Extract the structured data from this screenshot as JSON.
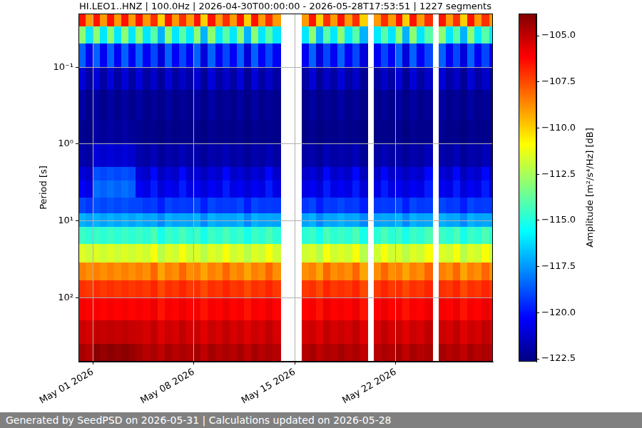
{
  "chart_data": {
    "type": "heatmap",
    "title": "HI.LEO1..HNZ | 100.0Hz | 2026-04-30T00:00:00 - 2026-05-28T17:53:51 | 1227 segments",
    "ylabel": "Period [s]",
    "footer": "Generated by SeedPSD on 2026-05-31 | Calculations updated on 2026-05-28",
    "log": "y",
    "grid": true,
    "xlim": [
      "2026-04-30T00:00:00",
      "2026-05-28T17:53:51"
    ],
    "xticks": [
      {
        "value": "2026-05-01T00:00",
        "label": "May 01 2026"
      },
      {
        "value": "2026-05-08T00:00",
        "label": "May 08 2026"
      },
      {
        "value": "2026-05-15T00:00",
        "label": "May 15 2026"
      },
      {
        "value": "2026-05-22T00:00",
        "label": "May 22 2026"
      }
    ],
    "ylim": [
      0.02,
      680
    ],
    "yticks": [
      {
        "value": 0.1,
        "label": "10⁻¹"
      },
      {
        "value": 1,
        "label": "10⁰"
      },
      {
        "value": 10,
        "label": "10¹"
      },
      {
        "value": 100,
        "label": "10²"
      }
    ],
    "x_bins": [
      "2026-04-30T00:00",
      "2026-04-30T12:00",
      "2026-05-01T00:00",
      "2026-05-01T12:00",
      "2026-05-02T00:00",
      "2026-05-02T12:00",
      "2026-05-03T00:00",
      "2026-05-03T12:00",
      "2026-05-04T00:00",
      "2026-05-04T12:00",
      "2026-05-05T00:00",
      "2026-05-05T12:00",
      "2026-05-06T00:00",
      "2026-05-06T12:00",
      "2026-05-07T00:00",
      "2026-05-07T12:00",
      "2026-05-08T00:00",
      "2026-05-08T12:00",
      "2026-05-09T00:00",
      "2026-05-09T12:00",
      "2026-05-10T00:00",
      "2026-05-10T12:00",
      "2026-05-11T00:00",
      "2026-05-11T12:00",
      "2026-05-12T00:00",
      "2026-05-12T12:00",
      "2026-05-13T00:00",
      "2026-05-13T12:00",
      "2026-05-14T00:00",
      "2026-05-14T12:00",
      "2026-05-15T00:00",
      "2026-05-15T12:00",
      "2026-05-16T00:00",
      "2026-05-16T12:00",
      "2026-05-17T00:00",
      "2026-05-17T12:00",
      "2026-05-18T00:00",
      "2026-05-18T12:00",
      "2026-05-19T00:00",
      "2026-05-19T12:00",
      "2026-05-20T00:00",
      "2026-05-20T12:00",
      "2026-05-21T00:00",
      "2026-05-21T12:00",
      "2026-05-22T00:00",
      "2026-05-22T12:00",
      "2026-05-23T00:00",
      "2026-05-23T12:00",
      "2026-05-24T00:00",
      "2026-05-24T12:00",
      "2026-05-25T00:00",
      "2026-05-25T12:00",
      "2026-05-26T00:00",
      "2026-05-26T12:00",
      "2026-05-27T00:00",
      "2026-05-27T12:00",
      "2026-05-28T00:00",
      "2026-05-28T12:00",
      "2026-05-28T17:53:51"
    ],
    "y_bins": [
      0.02,
      0.03,
      0.05,
      0.1,
      0.2,
      0.5,
      1,
      2,
      3,
      5,
      8,
      12,
      20,
      35,
      60,
      100,
      200,
      400,
      680
    ],
    "cells": [
      [
        -106.5,
        -113.0,
        -118.5,
        -121.0,
        -122.0,
        -122.3,
        -121.8,
        -121.0,
        -120.5,
        -119.0,
        -117.0,
        -114.5,
        -111.5,
        -108.5,
        -107.0,
        -106.0,
        -105.2,
        -104.5
      ],
      [
        -109.0,
        -116.0,
        -120.5,
        -122.0,
        -122.4,
        -122.5,
        -122.0,
        -121.3,
        -120.8,
        -119.3,
        -117.3,
        -114.8,
        -111.8,
        -108.8,
        -107.2,
        -106.2,
        -105.4,
        -104.8
      ],
      [
        -106.5,
        -113.0,
        -118.5,
        -121.0,
        -122.0,
        -122.0,
        -121.0,
        -118.8,
        -118.2,
        -118.8,
        -117.0,
        -114.5,
        -111.5,
        -108.5,
        -107.0,
        -106.0,
        -105.0,
        -104.0
      ],
      [
        -109.0,
        -116.0,
        -120.5,
        -122.0,
        -122.4,
        -122.2,
        -121.2,
        -119.0,
        -118.5,
        -119.0,
        -117.3,
        -114.8,
        -111.8,
        -108.8,
        -107.2,
        -106.2,
        -105.1,
        -104.2
      ],
      [
        -106.5,
        -113.0,
        -118.5,
        -121.0,
        -122.0,
        -122.0,
        -121.0,
        -118.8,
        -118.2,
        -118.8,
        -117.0,
        -114.5,
        -111.5,
        -108.5,
        -107.0,
        -106.0,
        -105.0,
        -104.0
      ],
      [
        -109.0,
        -116.0,
        -120.5,
        -122.0,
        -122.4,
        -122.2,
        -121.2,
        -119.0,
        -118.5,
        -119.0,
        -117.3,
        -114.8,
        -111.8,
        -108.8,
        -107.2,
        -106.2,
        -105.1,
        -104.2
      ],
      [
        -106.5,
        -113.0,
        -118.5,
        -121.0,
        -122.0,
        -122.0,
        -121.0,
        -118.8,
        -118.2,
        -118.8,
        -117.0,
        -114.5,
        -111.5,
        -108.5,
        -107.0,
        -106.0,
        -105.0,
        -104.0
      ],
      [
        -109.0,
        -116.0,
        -120.5,
        -122.0,
        -122.4,
        -122.2,
        -121.2,
        -119.0,
        -118.5,
        -119.0,
        -117.3,
        -114.8,
        -111.8,
        -108.8,
        -107.2,
        -106.2,
        -105.1,
        -104.2
      ],
      [
        -106.5,
        -113.0,
        -118.5,
        -121.0,
        -122.0,
        -122.3,
        -121.8,
        -121.0,
        -120.5,
        -119.0,
        -117.0,
        -114.5,
        -111.5,
        -108.5,
        -107.0,
        -106.0,
        -105.2,
        -104.5
      ],
      [
        -109.0,
        -116.0,
        -120.5,
        -122.0,
        -122.4,
        -122.5,
        -122.0,
        -121.3,
        -120.8,
        -119.3,
        -117.3,
        -114.8,
        -111.8,
        -108.8,
        -107.2,
        -106.2,
        -105.4,
        -104.8
      ],
      [
        -107.0,
        -114.0,
        -119.0,
        -121.3,
        -122.2,
        -122.4,
        -121.6,
        -120.2,
        -119.8,
        -119.2,
        -117.2,
        -114.2,
        -111.0,
        -108.0,
        -106.8,
        -105.8,
        -105.0,
        -104.6
      ],
      [
        -110.0,
        -117.0,
        -121.0,
        -122.2,
        -122.5,
        -122.6,
        -122.2,
        -121.5,
        -121.0,
        -119.8,
        -117.8,
        -115.2,
        -112.2,
        -109.2,
        -107.5,
        -106.5,
        -105.6,
        -105.0
      ],
      [
        -106.5,
        -113.0,
        -118.5,
        -121.0,
        -122.0,
        -122.3,
        -121.8,
        -121.0,
        -120.5,
        -119.0,
        -117.0,
        -114.5,
        -111.5,
        -108.5,
        -107.0,
        -106.0,
        -105.2,
        -104.5
      ],
      [
        -109.0,
        -116.0,
        -120.5,
        -122.0,
        -122.4,
        -122.5,
        -122.0,
        -121.3,
        -120.8,
        -119.3,
        -117.3,
        -114.8,
        -111.8,
        -108.8,
        -107.2,
        -106.2,
        -105.4,
        -104.8
      ],
      [
        -107.0,
        -114.0,
        -119.0,
        -121.3,
        -122.2,
        -122.4,
        -121.6,
        -120.2,
        -119.8,
        -119.2,
        -117.2,
        -114.2,
        -111.0,
        -108.0,
        -106.8,
        -105.8,
        -105.0,
        -104.6
      ],
      [
        -109.0,
        -116.0,
        -120.5,
        -122.0,
        -122.4,
        -122.5,
        -122.0,
        -121.3,
        -120.8,
        -119.3,
        -117.3,
        -114.8,
        -111.8,
        -108.8,
        -107.2,
        -106.2,
        -105.4,
        -104.8
      ],
      [
        -106.5,
        -113.0,
        -118.5,
        -121.0,
        -122.0,
        -122.3,
        -121.8,
        -121.0,
        -120.5,
        -119.0,
        -117.0,
        -114.5,
        -111.5,
        -108.5,
        -107.0,
        -106.0,
        -105.2,
        -104.5
      ],
      [
        -110.0,
        -117.0,
        -121.0,
        -122.2,
        -122.5,
        -122.6,
        -122.2,
        -121.5,
        -121.0,
        -119.8,
        -117.8,
        -115.2,
        -112.2,
        -109.2,
        -107.5,
        -106.5,
        -105.6,
        -105.0
      ],
      [
        -106.5,
        -113.0,
        -118.5,
        -121.0,
        -122.0,
        -122.3,
        -121.8,
        -121.0,
        -120.5,
        -119.0,
        -117.0,
        -114.5,
        -111.5,
        -108.5,
        -107.0,
        -106.0,
        -105.2,
        -104.5
      ],
      [
        -109.0,
        -116.0,
        -120.5,
        -122.0,
        -122.4,
        -122.5,
        -122.0,
        -121.3,
        -120.8,
        -119.3,
        -117.3,
        -114.8,
        -111.8,
        -108.8,
        -107.2,
        -106.2,
        -105.4,
        -104.8
      ],
      [
        -107.0,
        -114.0,
        -119.0,
        -121.3,
        -122.2,
        -122.4,
        -121.6,
        -120.2,
        -119.8,
        -119.2,
        -117.2,
        -114.2,
        -111.0,
        -108.0,
        -106.8,
        -105.8,
        -105.0,
        -104.6
      ],
      [
        -109.0,
        -116.0,
        -120.5,
        -122.0,
        -122.4,
        -122.5,
        -122.0,
        -121.3,
        -120.8,
        -119.3,
        -117.3,
        -114.8,
        -111.8,
        -108.8,
        -107.2,
        -106.2,
        -105.4,
        -104.8
      ],
      [
        -106.5,
        -113.0,
        -118.5,
        -121.0,
        -122.0,
        -122.3,
        -121.8,
        -121.0,
        -120.5,
        -119.0,
        -117.0,
        -114.5,
        -111.5,
        -108.5,
        -107.0,
        -106.0,
        -105.2,
        -104.5
      ],
      [
        -110.0,
        -117.0,
        -121.0,
        -122.2,
        -122.5,
        -122.6,
        -122.2,
        -121.5,
        -121.0,
        -119.8,
        -117.8,
        -115.2,
        -112.2,
        -109.2,
        -107.5,
        -106.5,
        -105.6,
        -105.0
      ],
      [
        -106.5,
        -113.0,
        -118.5,
        -121.0,
        -122.0,
        -122.3,
        -121.8,
        -121.0,
        -120.5,
        -119.0,
        -117.0,
        -114.5,
        -111.5,
        -108.5,
        -107.0,
        -106.0,
        -105.2,
        -104.5
      ],
      [
        -109.0,
        -116.0,
        -120.5,
        -122.0,
        -122.4,
        -122.5,
        -122.0,
        -121.3,
        -120.8,
        -119.3,
        -117.3,
        -114.8,
        -111.8,
        -108.8,
        -107.2,
        -106.2,
        -105.4,
        -104.8
      ],
      [
        -107.0,
        -114.0,
        -119.0,
        -121.3,
        -122.2,
        -122.4,
        -121.6,
        -120.2,
        -119.8,
        -119.2,
        -117.2,
        -114.2,
        -111.0,
        -108.0,
        -106.8,
        -105.8,
        -105.0,
        -104.6
      ],
      [
        -109.0,
        -116.0,
        -120.5,
        -122.0,
        -122.4,
        -122.5,
        -122.0,
        -121.3,
        -120.8,
        -119.3,
        -117.3,
        -114.8,
        -111.8,
        -108.8,
        -107.2,
        -106.2,
        -105.4,
        -104.8
      ],
      null,
      null,
      null,
      [
        -109.0,
        -116.0,
        -120.5,
        -122.0,
        -122.4,
        -122.5,
        -122.0,
        -121.3,
        -120.8,
        -119.3,
        -117.3,
        -114.8,
        -111.8,
        -108.8,
        -107.2,
        -106.2,
        -105.4,
        -104.8
      ],
      [
        -106.5,
        -113.0,
        -118.5,
        -121.0,
        -122.0,
        -122.3,
        -121.8,
        -121.0,
        -120.5,
        -119.0,
        -117.0,
        -114.5,
        -111.5,
        -108.5,
        -107.0,
        -106.0,
        -105.2,
        -104.5
      ],
      [
        -110.0,
        -117.0,
        -121.0,
        -122.2,
        -122.5,
        -122.6,
        -122.2,
        -121.5,
        -121.0,
        -119.8,
        -117.8,
        -115.2,
        -112.2,
        -109.2,
        -107.5,
        -106.5,
        -105.6,
        -105.0
      ],
      [
        -107.0,
        -114.0,
        -119.0,
        -121.3,
        -122.2,
        -122.4,
        -121.6,
        -120.2,
        -119.8,
        -119.2,
        -117.2,
        -114.2,
        -111.0,
        -108.0,
        -106.8,
        -105.8,
        -105.0,
        -104.6
      ],
      [
        -109.0,
        -116.0,
        -120.5,
        -122.0,
        -122.4,
        -122.5,
        -122.0,
        -121.3,
        -120.8,
        -119.3,
        -117.3,
        -114.8,
        -111.8,
        -108.8,
        -107.2,
        -106.2,
        -105.4,
        -104.8
      ],
      [
        -106.5,
        -113.0,
        -118.5,
        -121.0,
        -122.0,
        -122.3,
        -121.8,
        -121.0,
        -120.5,
        -119.0,
        -117.0,
        -114.5,
        -111.5,
        -108.5,
        -107.0,
        -106.0,
        -105.2,
        -104.5
      ],
      [
        -109.0,
        -116.0,
        -120.5,
        -122.0,
        -122.4,
        -122.5,
        -122.0,
        -121.3,
        -120.8,
        -119.3,
        -117.3,
        -114.8,
        -111.8,
        -108.8,
        -107.2,
        -106.2,
        -105.4,
        -104.8
      ],
      [
        -107.0,
        -114.0,
        -119.0,
        -121.3,
        -122.2,
        -122.4,
        -121.6,
        -120.2,
        -119.8,
        -119.2,
        -117.2,
        -114.2,
        -111.0,
        -108.0,
        -106.8,
        -105.8,
        -105.0,
        -104.6
      ],
      [
        -110.0,
        -117.0,
        -121.0,
        -122.2,
        -122.5,
        -122.6,
        -122.2,
        -121.5,
        -121.0,
        -119.8,
        -117.8,
        -115.2,
        -112.2,
        -109.2,
        -107.5,
        -106.5,
        -105.6,
        -105.0
      ],
      null,
      [
        -109.0,
        -116.0,
        -120.5,
        -122.0,
        -122.4,
        -122.5,
        -122.0,
        -121.3,
        -120.8,
        -119.3,
        -117.3,
        -114.8,
        -111.8,
        -108.8,
        -107.2,
        -106.2,
        -105.4,
        -104.8
      ],
      [
        -107.0,
        -114.0,
        -119.0,
        -121.3,
        -122.2,
        -122.4,
        -121.6,
        -120.2,
        -119.8,
        -119.2,
        -117.2,
        -114.2,
        -111.0,
        -108.0,
        -106.8,
        -105.8,
        -105.0,
        -104.6
      ],
      [
        -109.0,
        -116.0,
        -120.5,
        -122.0,
        -122.4,
        -122.5,
        -122.0,
        -121.3,
        -120.8,
        -119.3,
        -117.3,
        -114.8,
        -111.8,
        -108.8,
        -107.2,
        -106.2,
        -105.4,
        -104.8
      ],
      [
        -106.5,
        -113.0,
        -118.5,
        -121.0,
        -122.0,
        -122.3,
        -121.8,
        -121.0,
        -120.5,
        -119.0,
        -117.0,
        -114.5,
        -111.5,
        -108.5,
        -107.0,
        -106.0,
        -105.2,
        -104.5
      ],
      [
        -110.0,
        -117.0,
        -121.0,
        -122.2,
        -122.5,
        -122.6,
        -122.2,
        -121.5,
        -121.0,
        -119.8,
        -117.8,
        -115.2,
        -112.2,
        -109.2,
        -107.5,
        -106.5,
        -105.6,
        -105.0
      ],
      [
        -106.5,
        -113.0,
        -118.5,
        -121.0,
        -122.0,
        -122.3,
        -121.8,
        -121.0,
        -120.5,
        -119.0,
        -117.0,
        -114.5,
        -111.5,
        -108.5,
        -107.0,
        -106.0,
        -105.2,
        -104.5
      ],
      [
        -109.0,
        -116.0,
        -120.5,
        -122.0,
        -122.4,
        -122.5,
        -122.0,
        -121.3,
        -120.8,
        -119.3,
        -117.3,
        -114.8,
        -111.8,
        -108.8,
        -107.2,
        -106.2,
        -105.4,
        -104.8
      ],
      [
        -107.0,
        -114.0,
        -119.0,
        -121.3,
        -122.2,
        -122.4,
        -121.6,
        -120.2,
        -119.8,
        -119.2,
        -117.2,
        -114.2,
        -111.0,
        -108.0,
        -106.8,
        -105.8,
        -105.0,
        -104.6
      ],
      null,
      [
        -106.5,
        -113.0,
        -118.5,
        -121.0,
        -122.0,
        -122.3,
        -121.8,
        -121.0,
        -120.5,
        -119.0,
        -117.0,
        -114.5,
        -111.5,
        -108.5,
        -107.0,
        -106.0,
        -105.2,
        -104.5
      ],
      [
        -109.0,
        -116.0,
        -120.5,
        -122.0,
        -122.4,
        -122.5,
        -122.0,
        -121.3,
        -120.8,
        -119.3,
        -117.3,
        -114.8,
        -111.8,
        -108.8,
        -107.2,
        -106.2,
        -105.4,
        -104.8
      ],
      [
        -107.0,
        -114.0,
        -119.0,
        -121.3,
        -122.2,
        -122.4,
        -121.6,
        -120.2,
        -119.8,
        -119.2,
        -117.2,
        -114.2,
        -111.0,
        -108.0,
        -106.8,
        -105.8,
        -105.0,
        -104.6
      ],
      [
        -110.0,
        -117.0,
        -121.0,
        -122.2,
        -122.5,
        -122.6,
        -122.2,
        -121.5,
        -121.0,
        -119.8,
        -117.8,
        -115.2,
        -112.2,
        -109.2,
        -107.5,
        -106.5,
        -105.6,
        -105.0
      ],
      [
        -106.5,
        -113.0,
        -118.5,
        -121.0,
        -122.0,
        -122.3,
        -121.8,
        -121.0,
        -120.5,
        -119.0,
        -117.0,
        -114.5,
        -111.5,
        -108.5,
        -107.0,
        -106.0,
        -105.2,
        -104.5
      ],
      [
        -109.0,
        -116.0,
        -120.5,
        -122.0,
        -122.4,
        -122.5,
        -122.0,
        -121.3,
        -120.8,
        -119.3,
        -117.3,
        -114.8,
        -111.8,
        -108.8,
        -107.2,
        -106.2,
        -105.4,
        -104.8
      ],
      [
        -107.0,
        -114.0,
        -119.0,
        -121.3,
        -122.2,
        -122.4,
        -121.6,
        -120.2,
        -119.8,
        -119.2,
        -117.2,
        -114.2,
        -111.0,
        -108.0,
        -106.8,
        -105.8,
        -105.0,
        -104.6
      ],
      [
        -109.0,
        -116.0,
        -120.5,
        -122.0,
        -122.4,
        -122.5,
        -122.0,
        -121.3,
        -120.8,
        -119.3,
        -117.3,
        -114.8,
        -111.8,
        -108.8,
        -107.2,
        -106.2,
        -105.4,
        -104.8
      ]
    ],
    "colorbar": {
      "label": "Amplitude [m²/s⁴/Hz] [dB]",
      "range": [
        -122.65,
        -103.8
      ],
      "ticks": [
        {
          "value": -105,
          "label": "−105.0"
        },
        {
          "value": -107.5,
          "label": "−107.5"
        },
        {
          "value": -110,
          "label": "−110.0"
        },
        {
          "value": -112.5,
          "label": "−112.5"
        },
        {
          "value": -115,
          "label": "−115.0"
        },
        {
          "value": -117.5,
          "label": "−117.5"
        },
        {
          "value": -120,
          "label": "−120.0"
        },
        {
          "value": -122.5,
          "label": "−122.5"
        }
      ]
    }
  }
}
